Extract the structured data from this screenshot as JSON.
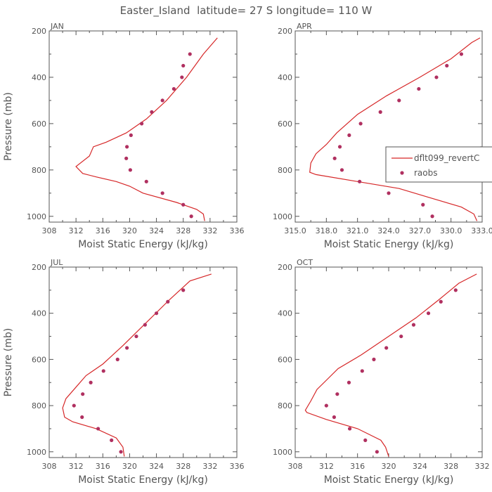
{
  "title": "Easter_Island  latitude= 27 S longitude= 110 W",
  "colors": {
    "model": "#d62728",
    "obs": "#b03060",
    "axis": "#555555"
  },
  "legend": {
    "entries": [
      "dflt099_revertC",
      "raobs"
    ],
    "placement": "right-middle of APR panel"
  },
  "chart_data": [
    {
      "type": "line",
      "panel": "JAN",
      "xlabel": "Moist Static Energy (kJ/kg)",
      "ylabel": "Pressure (mb)",
      "xlim": [
        308,
        336
      ],
      "ylim": [
        1025,
        200
      ],
      "xticks": [
        "308",
        "312",
        "316",
        "320",
        "324",
        "328",
        "332",
        "336"
      ],
      "yticks": [
        "200",
        "400",
        "600",
        "800",
        "1000"
      ],
      "series": [
        {
          "name": "dflt099_revertC",
          "style": "line",
          "x": [
            333.1,
            331.0,
            328.5,
            325.5,
            322.5,
            319.5,
            316.5,
            314.6,
            314.0,
            312.0,
            313.0,
            315.0,
            318.0,
            320.0,
            322.0,
            327.0,
            330.0,
            331.0,
            331.2
          ],
          "y": [
            230,
            300,
            400,
            500,
            580,
            640,
            680,
            700,
            740,
            785,
            815,
            830,
            850,
            870,
            900,
            940,
            970,
            990,
            1020
          ]
        },
        {
          "name": "raobs",
          "style": "points",
          "x": [
            329.0,
            328.0,
            327.8,
            326.6,
            324.9,
            323.3,
            321.8,
            320.2,
            319.6,
            319.5,
            320.1,
            322.5,
            324.9,
            328.0,
            329.2
          ],
          "y": [
            300,
            350,
            400,
            450,
            500,
            550,
            600,
            650,
            700,
            750,
            800,
            850,
            900,
            950,
            1000
          ]
        }
      ]
    },
    {
      "type": "line",
      "panel": "APR",
      "xlabel": "Moist Static Energy (kJ/kg)",
      "ylabel": "",
      "xlim": [
        315,
        333
      ],
      "ylim": [
        1025,
        200
      ],
      "xticks": [
        "315.0",
        "318.0",
        "321.0",
        "324.0",
        "327.0",
        "330.0",
        "333.0"
      ],
      "yticks": [
        "200",
        "400",
        "600",
        "800",
        "1000"
      ],
      "series": [
        {
          "name": "dflt099_revertC",
          "style": "line",
          "x": [
            332.8,
            332.0,
            330.0,
            327.0,
            323.8,
            321.0,
            319.0,
            318.0,
            317.0,
            316.5,
            316.4,
            317.0,
            321.0,
            325.0,
            328.0,
            331.0,
            332.2,
            332.5
          ],
          "y": [
            230,
            250,
            320,
            400,
            480,
            560,
            640,
            690,
            730,
            770,
            810,
            820,
            850,
            880,
            920,
            960,
            990,
            1020
          ]
        },
        {
          "name": "raobs",
          "style": "points",
          "x": [
            331.0,
            329.6,
            328.6,
            326.9,
            325.0,
            323.2,
            321.3,
            320.2,
            319.3,
            318.8,
            319.5,
            321.2,
            324.0,
            327.3,
            328.2
          ],
          "y": [
            300,
            350,
            400,
            450,
            500,
            550,
            600,
            650,
            700,
            750,
            800,
            850,
            900,
            950,
            1000
          ]
        }
      ]
    },
    {
      "type": "line",
      "panel": "JUL",
      "xlabel": "Moist Static Energy (kJ/kg)",
      "ylabel": "Pressure (mb)",
      "xlim": [
        308,
        336
      ],
      "ylim": [
        1025,
        200
      ],
      "xticks": [
        "308",
        "312",
        "316",
        "320",
        "324",
        "328",
        "332",
        "336"
      ],
      "yticks": [
        "200",
        "400",
        "600",
        "800",
        "1000"
      ],
      "series": [
        {
          "name": "dflt099_revertC",
          "style": "line",
          "x": [
            332.2,
            329.0,
            326.0,
            322.5,
            319.0,
            316.0,
            313.5,
            312.0,
            310.5,
            310.0,
            310.3,
            311.5,
            315.0,
            318.0,
            319.0,
            319.2
          ],
          "y": [
            230,
            260,
            340,
            440,
            540,
            620,
            670,
            720,
            770,
            810,
            850,
            870,
            900,
            940,
            980,
            1020
          ]
        },
        {
          "name": "raobs",
          "style": "points",
          "x": [
            328.0,
            325.7,
            324.0,
            322.3,
            321.0,
            319.6,
            318.2,
            316.1,
            314.2,
            313.0,
            311.7,
            312.9,
            315.3,
            317.3,
            318.7
          ],
          "y": [
            300,
            350,
            400,
            450,
            500,
            550,
            600,
            650,
            700,
            750,
            800,
            850,
            900,
            950,
            1000
          ]
        }
      ]
    },
    {
      "type": "line",
      "panel": "OCT",
      "xlabel": "Moist Static Energy (kJ/kg)",
      "ylabel": "",
      "xlim": [
        308,
        332
      ],
      "ylim": [
        1025,
        200
      ],
      "xticks": [
        "308",
        "312",
        "316",
        "320",
        "324",
        "328",
        "332"
      ],
      "yticks": [
        "200",
        "400",
        "600",
        "800",
        "1000"
      ],
      "series": [
        {
          "name": "dflt099_revertC",
          "style": "line",
          "x": [
            331.3,
            329.0,
            326.5,
            323.5,
            320.0,
            316.5,
            313.5,
            312.0,
            310.8,
            310.0,
            309.3,
            309.5,
            312.0,
            316.0,
            319.0,
            319.6,
            320.0
          ],
          "y": [
            230,
            270,
            340,
            420,
            500,
            580,
            640,
            690,
            730,
            780,
            820,
            830,
            860,
            900,
            950,
            980,
            1020
          ]
        },
        {
          "name": "raobs",
          "style": "points",
          "x": [
            328.6,
            326.7,
            325.1,
            323.2,
            321.6,
            319.7,
            318.1,
            316.6,
            314.9,
            313.4,
            312.0,
            313.0,
            315.0,
            317.0,
            318.5
          ],
          "y": [
            300,
            350,
            400,
            450,
            500,
            550,
            600,
            650,
            700,
            750,
            800,
            850,
            900,
            950,
            1000
          ]
        }
      ]
    }
  ]
}
